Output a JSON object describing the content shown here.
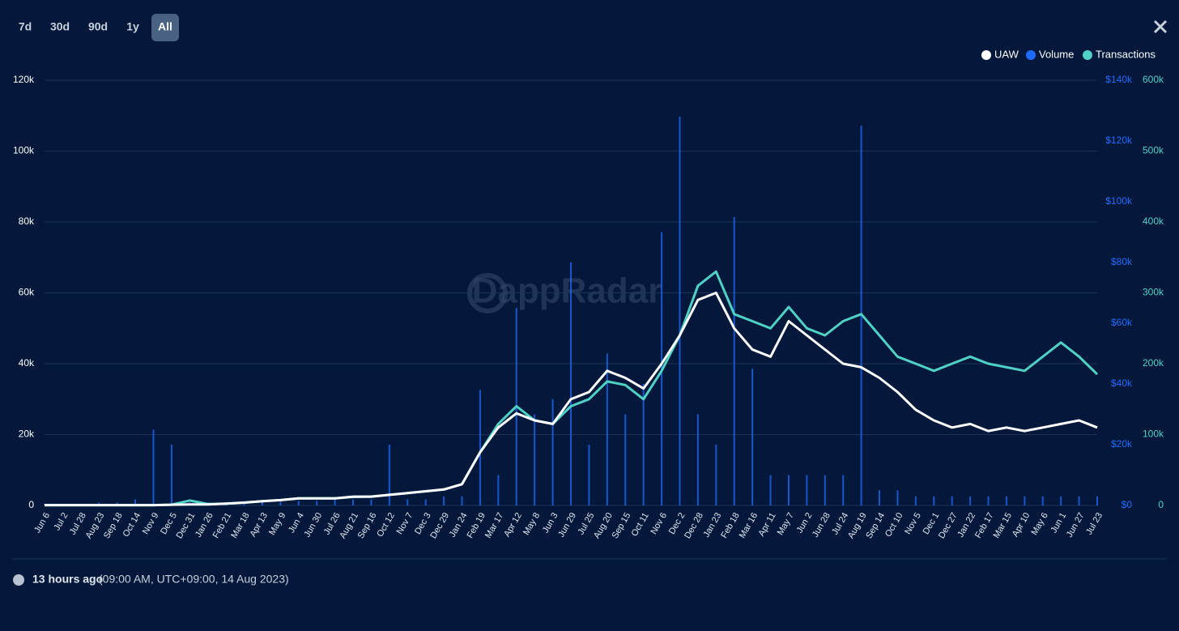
{
  "ui": {
    "ranges": [
      "7d",
      "30d",
      "90d",
      "1y",
      "All"
    ],
    "active_range": "All",
    "watermark": "DappRadar",
    "updated": "13 hours ago",
    "updated_detail": "(09:00 AM, UTC+09:00, 14 Aug 2023)"
  },
  "chart_data": {
    "type": "line",
    "categories": [
      "Jun 6",
      "Jul 2",
      "Jul 28",
      "Aug 23",
      "Sep 18",
      "Oct 14",
      "Nov 9",
      "Dec 5",
      "Dec 31",
      "Jan 26",
      "Feb 21",
      "Mar 18",
      "Apr 13",
      "May 9",
      "Jun 4",
      "Jun 30",
      "Jul 26",
      "Aug 21",
      "Sep 16",
      "Oct 12",
      "Nov 7",
      "Dec 3",
      "Dec 29",
      "Jan 24",
      "Feb 19",
      "Mar 17",
      "Apr 12",
      "May 8",
      "Jun 3",
      "Jun 29",
      "Jul 25",
      "Aug 20",
      "Sep 15",
      "Oct 11",
      "Nov 6",
      "Dec 2",
      "Dec 28",
      "Jan 23",
      "Feb 18",
      "Mar 16",
      "Apr 11",
      "May 7",
      "Jun 2",
      "Jun 28",
      "Jul 24",
      "Aug 19",
      "Sep 14",
      "Oct 10",
      "Nov 5",
      "Dec 1",
      "Dec 27",
      "Jan 22",
      "Feb 17",
      "Mar 15",
      "Apr 10",
      "May 6",
      "Jun 1",
      "Jun 27",
      "Jul 23"
    ],
    "series": [
      {
        "name": "UAW",
        "color": "#ffffff",
        "axis": "y",
        "values": [
          100,
          100,
          100,
          100,
          100,
          100,
          100,
          200,
          300,
          300,
          500,
          800,
          1200,
          1500,
          2000,
          2000,
          2000,
          2500,
          2500,
          3000,
          3500,
          4000,
          4500,
          6000,
          15000,
          22000,
          26000,
          24000,
          23000,
          30000,
          32000,
          38000,
          36000,
          33000,
          40000,
          48000,
          58000,
          60000,
          50000,
          44000,
          42000,
          52000,
          48000,
          44000,
          40000,
          39000,
          36000,
          32000,
          27000,
          24000,
          22000,
          23000,
          21000,
          22000,
          21000,
          22000,
          23000,
          24000,
          22000
        ]
      },
      {
        "name": "Volume",
        "color": "#1f6bff",
        "axis": "y2",
        "kind": "bar",
        "values": [
          500,
          500,
          500,
          1000,
          1000,
          2000,
          25000,
          20000,
          1000,
          1000,
          1000,
          1000,
          1500,
          1500,
          1500,
          1500,
          2000,
          2000,
          2000,
          20000,
          2000,
          2000,
          3000,
          3000,
          38000,
          10000,
          65000,
          30000,
          35000,
          80000,
          20000,
          50000,
          30000,
          40000,
          90000,
          128000,
          30000,
          20000,
          95000,
          45000,
          10000,
          10000,
          10000,
          10000,
          10000,
          125000,
          5000,
          5000,
          3000,
          3000,
          3000,
          3000,
          3000,
          3000,
          3000,
          3000,
          3000,
          3000,
          3000
        ]
      },
      {
        "name": "Transactions",
        "color": "#4fd1c5",
        "axis": "y3",
        "values": [
          500,
          500,
          500,
          500,
          500,
          500,
          500,
          1000,
          7000,
          2000,
          2500,
          4000,
          6000,
          7500,
          10000,
          10000,
          10000,
          12000,
          12500,
          15000,
          17500,
          20000,
          22500,
          30000,
          75000,
          115000,
          140000,
          120000,
          115000,
          140000,
          150000,
          175000,
          170000,
          150000,
          190000,
          240000,
          310000,
          330000,
          270000,
          260000,
          250000,
          280000,
          250000,
          240000,
          260000,
          270000,
          240000,
          210000,
          200000,
          190000,
          200000,
          210000,
          200000,
          195000,
          190000,
          210000,
          230000,
          210000,
          185000
        ]
      }
    ],
    "ylim": [
      0,
      120000
    ],
    "yticks": [
      0,
      {
        "value": 20000,
        "label": "20k"
      },
      {
        "value": 40000,
        "label": "40k"
      },
      {
        "value": 60000,
        "label": "60k"
      },
      {
        "value": 80000,
        "label": "80k"
      },
      {
        "value": 100000,
        "label": "100k"
      },
      {
        "value": 120000,
        "label": "120k"
      }
    ],
    "y2lim": [
      0,
      140000
    ],
    "y2ticks": [
      {
        "value": 0,
        "label": "$0"
      },
      {
        "value": 20000,
        "label": "$20k"
      },
      {
        "value": 40000,
        "label": "$40k"
      },
      {
        "value": 60000,
        "label": "$60k"
      },
      {
        "value": 80000,
        "label": "$80k"
      },
      {
        "value": 100000,
        "label": "$100k"
      },
      {
        "value": 120000,
        "label": "$120k"
      },
      {
        "value": 140000,
        "label": "$140k"
      }
    ],
    "y3lim": [
      0,
      600000
    ],
    "y3ticks": [
      0,
      {
        "value": 100000,
        "label": "100k"
      },
      {
        "value": 200000,
        "label": "200k"
      },
      {
        "value": 300000,
        "label": "300k"
      },
      {
        "value": 400000,
        "label": "400k"
      },
      {
        "value": 500000,
        "label": "500k"
      },
      {
        "value": 600000,
        "label": "600k"
      }
    ],
    "grid": true,
    "legend": "top-right"
  }
}
